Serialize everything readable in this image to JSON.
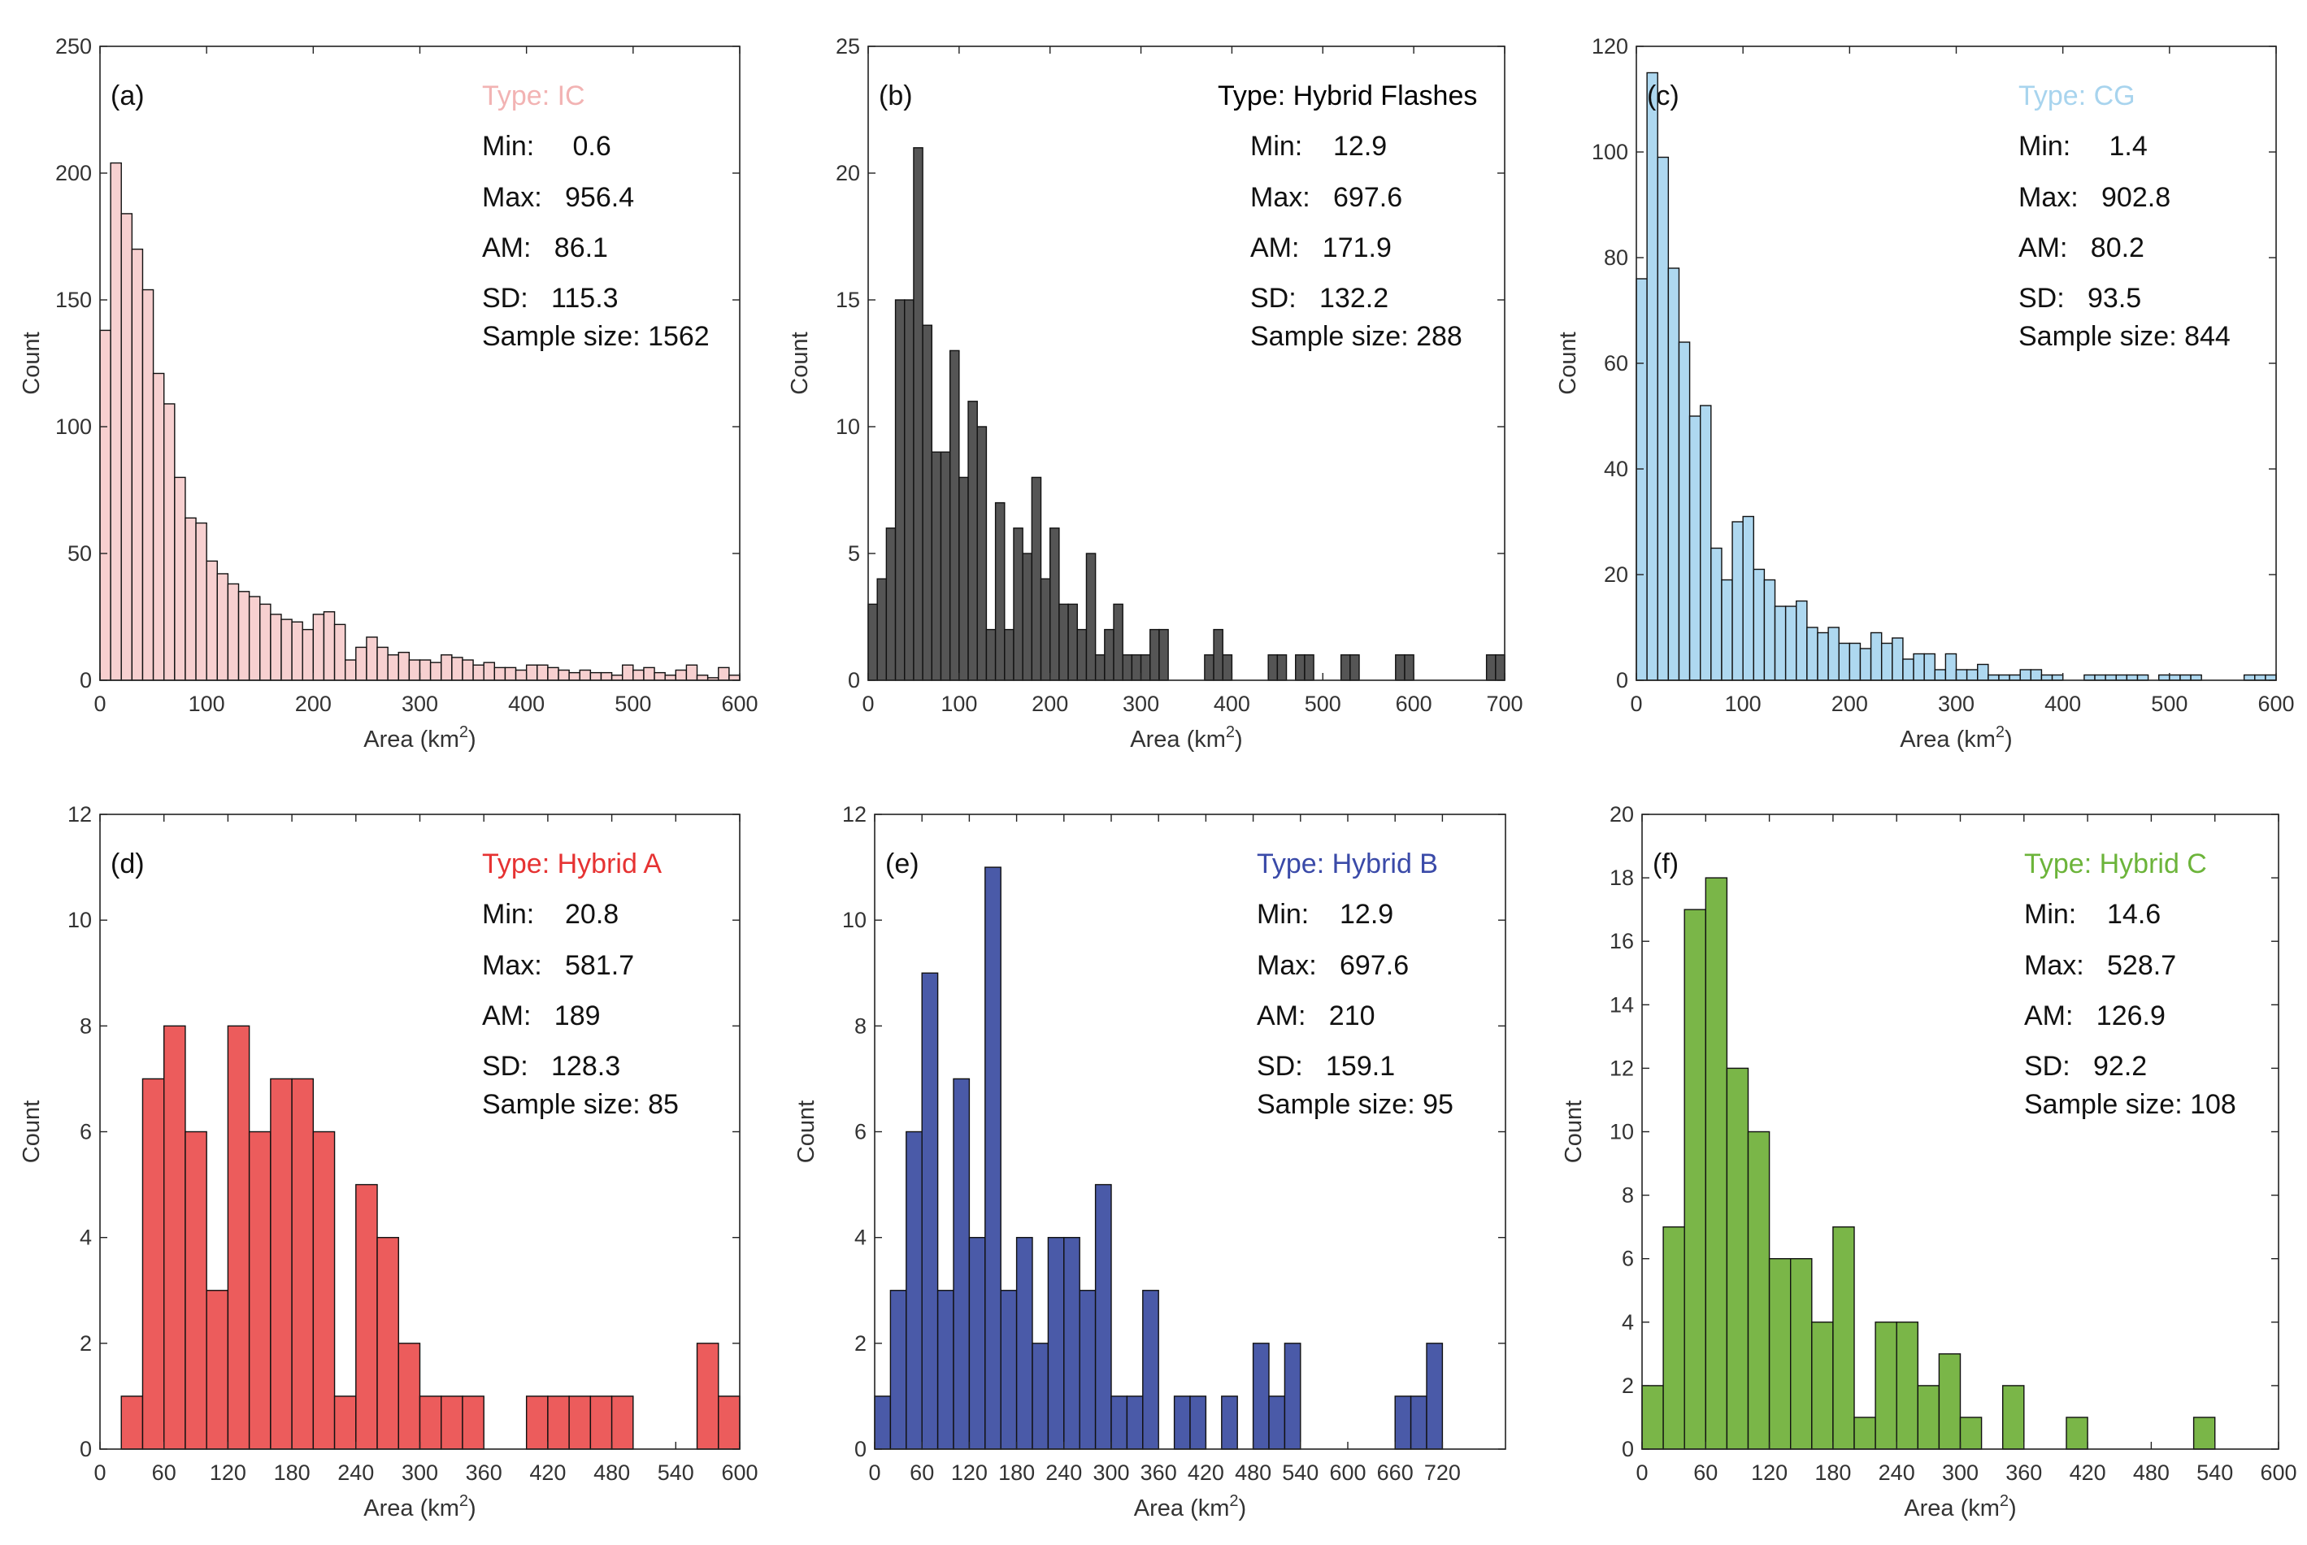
{
  "chart_data": [
    {
      "panel": "(a)",
      "type": "bar",
      "bar_color": "#f7d0d0",
      "type_color": "#f2b3b3",
      "x_range": [
        0,
        600
      ],
      "y_range": [
        0,
        250
      ],
      "x_ticks": [
        "0",
        "100",
        "200",
        "300",
        "400",
        "500",
        "600"
      ],
      "y_ticks": [
        "0",
        "50",
        "100",
        "150",
        "200",
        "250"
      ],
      "bin_width": 10,
      "counts": [
        138,
        204,
        184,
        170,
        154,
        121,
        109,
        80,
        64,
        62,
        47,
        42,
        38,
        35,
        33,
        30,
        26,
        24,
        23,
        20,
        26,
        27,
        22,
        8,
        13,
        17,
        13,
        10,
        11,
        8,
        8,
        7,
        10,
        9,
        8,
        6,
        7,
        5,
        5,
        4,
        6,
        6,
        5,
        4,
        3,
        4,
        3,
        3,
        2,
        6,
        4,
        5,
        3,
        2,
        4,
        6,
        2,
        1,
        5,
        2
      ],
      "xlabel": "Area (km",
      "xlabel_sup": "2",
      "xlabel_end": ")",
      "ylabel": "Count",
      "type_label": "Type:  IC",
      "stats": [
        "Min:     0.6",
        "Max:   956.4",
        "AM:   86.1",
        "SD:   115.3",
        "Sample size: 1562"
      ]
    },
    {
      "panel": "(b)",
      "type": "bar",
      "bar_color": "#555555",
      "type_color": "#000000",
      "x_range": [
        0,
        700
      ],
      "y_range": [
        0,
        25
      ],
      "x_ticks": [
        "0",
        "100",
        "200",
        "300",
        "400",
        "500",
        "600",
        "700"
      ],
      "y_ticks": [
        "0",
        "5",
        "10",
        "15",
        "20",
        "25"
      ],
      "bin_width": 10,
      "counts": [
        3,
        4,
        6,
        15,
        15,
        21,
        14,
        9,
        9,
        13,
        8,
        11,
        10,
        2,
        7,
        2,
        6,
        5,
        8,
        4,
        6,
        3,
        3,
        2,
        5,
        1,
        2,
        3,
        1,
        1,
        1,
        2,
        2,
        0,
        0,
        0,
        0,
        1,
        2,
        1,
        0,
        0,
        0,
        0,
        1,
        1,
        0,
        1,
        1,
        0,
        0,
        0,
        1,
        1,
        0,
        0,
        0,
        0,
        1,
        1,
        0,
        0,
        0,
        0,
        0,
        0,
        0,
        0,
        1,
        1
      ],
      "xlabel": "Area (km",
      "xlabel_sup": "2",
      "xlabel_end": ")",
      "ylabel": "Count",
      "type_label": "Type:  Hybrid Flashes",
      "stats": [
        "Min:    12.9",
        "Max:   697.6",
        "AM:   171.9",
        "SD:   132.2",
        "Sample size: 288"
      ]
    },
    {
      "panel": "(c)",
      "type": "bar",
      "bar_color": "#aed8f0",
      "type_color": "#a8d4ee",
      "x_range": [
        0,
        600
      ],
      "y_range": [
        0,
        120
      ],
      "x_ticks": [
        "0",
        "100",
        "200",
        "300",
        "400",
        "500",
        "600"
      ],
      "y_ticks": [
        "0",
        "20",
        "40",
        "60",
        "80",
        "100",
        "120"
      ],
      "bin_width": 10,
      "counts": [
        76,
        115,
        99,
        78,
        64,
        50,
        52,
        25,
        19,
        30,
        31,
        21,
        19,
        14,
        14,
        15,
        10,
        9,
        10,
        7,
        7,
        6,
        9,
        7,
        8,
        4,
        5,
        5,
        2,
        5,
        2,
        2,
        3,
        1,
        1,
        1,
        2,
        2,
        1,
        1,
        0,
        0,
        1,
        1,
        1,
        1,
        1,
        1,
        0,
        1,
        1,
        1,
        1,
        0,
        0,
        0,
        0,
        1,
        1,
        1
      ],
      "xlabel": "Area (km",
      "xlabel_sup": "2",
      "xlabel_end": ")",
      "ylabel": "Count",
      "type_label": "Type:  CG",
      "stats": [
        "Min:     1.4",
        "Max:   902.8",
        "AM:   80.2",
        "SD:   93.5",
        "Sample size: 844"
      ]
    },
    {
      "panel": "(d)",
      "type": "bar",
      "bar_color": "#ec5c5c",
      "type_color": "#e63232",
      "x_range": [
        0,
        600
      ],
      "y_range": [
        0,
        12
      ],
      "x_ticks": [
        "0",
        "60",
        "120",
        "180",
        "240",
        "300",
        "360",
        "420",
        "480",
        "540",
        "600"
      ],
      "y_ticks": [
        "0",
        "2",
        "4",
        "6",
        "8",
        "10",
        "12"
      ],
      "bin_width": 20,
      "counts": [
        1,
        7,
        8,
        6,
        3,
        8,
        6,
        7,
        7,
        6,
        1,
        5,
        4,
        2,
        1,
        1,
        1,
        0,
        0,
        1,
        1,
        1,
        1,
        1,
        0,
        0,
        0,
        2,
        1
      ],
      "bin_start": 20,
      "xlabel": "Area (km",
      "xlabel_sup": "2",
      "xlabel_end": ")",
      "ylabel": "Count",
      "type_label": "Type:  Hybrid A",
      "stats": [
        "Min:    20.8",
        "Max:   581.7",
        "AM:   189",
        "SD:   128.3",
        "Sample size: 85"
      ]
    },
    {
      "panel": "(e)",
      "type": "bar",
      "bar_color": "#4a5aa8",
      "type_color": "#3a4aa8",
      "x_range": [
        0,
        800
      ],
      "y_range": [
        0,
        12
      ],
      "x_ticks": [
        "0",
        "60",
        "120",
        "180",
        "240",
        "300",
        "360",
        "420",
        "480",
        "540",
        "600",
        "660",
        "720"
      ],
      "y_ticks": [
        "0",
        "2",
        "4",
        "6",
        "8",
        "10",
        "12"
      ],
      "bin_width": 20,
      "counts": [
        1,
        3,
        6,
        9,
        3,
        7,
        4,
        11,
        3,
        4,
        2,
        4,
        4,
        3,
        5,
        1,
        1,
        3,
        0,
        1,
        1,
        0,
        1,
        0,
        2,
        1,
        2,
        0,
        0,
        0,
        0,
        0,
        0,
        1,
        1,
        2
      ],
      "xlabel": "Area (km",
      "xlabel_sup": "2",
      "xlabel_end": ")",
      "ylabel": "Count",
      "type_label": "Type:  Hybrid B",
      "stats": [
        "Min:    12.9",
        "Max:   697.6",
        "AM:   210",
        "SD:   159.1",
        "Sample size: 95"
      ]
    },
    {
      "panel": "(f)",
      "type": "bar",
      "bar_color": "#7ab648",
      "type_color": "#6cb43a",
      "x_range": [
        0,
        600
      ],
      "y_range": [
        0,
        20
      ],
      "x_ticks": [
        "0",
        "60",
        "120",
        "180",
        "240",
        "300",
        "360",
        "420",
        "480",
        "540",
        "600"
      ],
      "y_ticks": [
        "0",
        "2",
        "4",
        "6",
        "8",
        "10",
        "12",
        "14",
        "16",
        "18",
        "20"
      ],
      "bin_width": 20,
      "counts": [
        2,
        7,
        17,
        18,
        12,
        10,
        6,
        6,
        4,
        7,
        1,
        4,
        4,
        2,
        3,
        1,
        0,
        2,
        0,
        0,
        1,
        0,
        0,
        0,
        0,
        0,
        1
      ],
      "xlabel": "Area (km",
      "xlabel_sup": "2",
      "xlabel_end": ")",
      "ylabel": "Count",
      "type_label": "Type:  Hybrid C",
      "stats": [
        "Min:    14.6",
        "Max:   528.7",
        "AM:   126.9",
        "SD:   92.2",
        "Sample size: 108"
      ]
    }
  ]
}
